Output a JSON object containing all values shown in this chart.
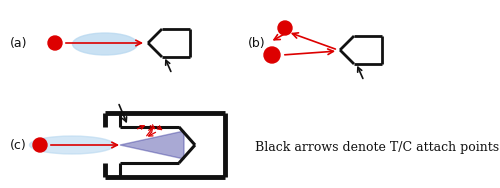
{
  "bg_color": "#ffffff",
  "label_a": "(a)",
  "label_b": "(b)",
  "label_c": "(c)",
  "annotation_text": "Black arrows denote T/C attach points",
  "annotation_fontsize": 9,
  "label_fontsize": 9,
  "red_color": "#dd0000",
  "blue_light": "#b8d8f0",
  "blue_mid": "#5060a0",
  "black": "#111111",
  "purple": "#4040a0"
}
